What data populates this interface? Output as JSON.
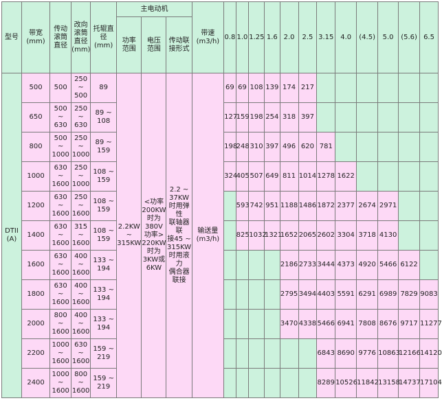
{
  "headers": {
    "model": "型号",
    "belt_width": "带宽\n(mm)",
    "drive_pulley": "传动\n滚筒\n直径",
    "bend_pulley": "改向\n滚筒\n直径\n(mm)",
    "idler": "托辊直\n径\n(mm)",
    "main_motor": "主电动机",
    "power_range": "功率\n范围",
    "voltage_range": "电压\n范围",
    "drive_connection": "传动联\n接形式",
    "belt_speed": "带速\n(m3/h)"
  },
  "speeds": [
    "0.8",
    "1.0",
    "1.25",
    "1.6",
    "2.0",
    "2.5",
    "3.15",
    "4.0",
    "(4.5)",
    "5.0",
    "(5.6)",
    "6.5"
  ],
  "model": "DTII\n(A)",
  "shared": {
    "power": "2.2KW\n~\n315KW",
    "voltage": "<功率\n200KW\n时为\n380V\n功率>\n220KW\n时为\n3KW或\n6KW",
    "connection": "2.2 ~\n37KW\n时用弹\n性\n联轴器\n联\n接45 ~\n315KW\n时用液\n力\n偶合器\n联接",
    "capacity_label": "输送量\n(m3/h)"
  },
  "rows": [
    {
      "width": "500",
      "drive": "500",
      "bend": "250\n~\n500",
      "idler": "89",
      "cap": [
        "69",
        "69",
        "108",
        "139",
        "174",
        "217",
        "",
        "",
        "",
        "",
        "",
        ""
      ]
    },
    {
      "width": "650",
      "drive": "500\n~\n630",
      "bend": "250\n~\n630",
      "idler": "89 ~\n108",
      "cap": [
        "127",
        "159",
        "198",
        "254",
        "318",
        "397",
        "",
        "",
        "",
        "",
        "",
        ""
      ]
    },
    {
      "width": "800",
      "drive": "500\n~\n1000",
      "bend": "250\n~\n1000",
      "idler": "89 ~\n159",
      "cap": [
        "198",
        "248",
        "310",
        "397",
        "496",
        "620",
        "781",
        "",
        "",
        "",
        "",
        ""
      ]
    },
    {
      "width": "1000",
      "drive": "630\n~\n1600",
      "bend": "250\n~\n1000",
      "idler": "108 ~\n159",
      "cap": [
        "324",
        "405",
        "507",
        "649",
        "811",
        "1014",
        "1278",
        "1622",
        "",
        "",
        "",
        ""
      ]
    },
    {
      "width": "1200",
      "drive": "630\n~\n1600",
      "bend": "250\n~\n1600",
      "idler": "108 ~\n159",
      "cap": [
        "",
        "593",
        "742",
        "951",
        "1188",
        "1486",
        "1872",
        "2377",
        "2674",
        "2971",
        "",
        ""
      ]
    },
    {
      "width": "1400",
      "drive": "630\n~\n1600",
      "bend": "315\n~\n1600",
      "idler": "108 ~\n159",
      "cap": [
        "",
        "825",
        "1032",
        "1321",
        "1652",
        "2065",
        "2602",
        "3304",
        "3718",
        "4130",
        "",
        ""
      ]
    },
    {
      "width": "1600",
      "drive": "630\n~\n1600",
      "bend": "400\n~\n1600",
      "idler": "133 ~\n194",
      "cap": [
        "",
        "",
        "",
        "",
        "2186",
        "2733",
        "3444",
        "4373",
        "4920",
        "5466",
        "6122",
        ""
      ]
    },
    {
      "width": "1800",
      "drive": "630\n~\n1600",
      "bend": "400\n~\n1600",
      "idler": "133 ~\n194",
      "cap": [
        "",
        "",
        "",
        "",
        "2795",
        "3494",
        "4403",
        "5591",
        "6291",
        "6989",
        "7829",
        "9083"
      ]
    },
    {
      "width": "2000",
      "drive": "800\n~\n1600",
      "bend": "400\n~\n1600",
      "idler": "133 ~\n194",
      "cap": [
        "",
        "",
        "",
        "",
        "3470",
        "4338",
        "5466",
        "6941",
        "7808",
        "8676",
        "9717",
        "11277"
      ]
    },
    {
      "width": "2200",
      "drive": "1000\n~\n1600",
      "bend": "630\n~\n1600",
      "idler": "159 ~\n219",
      "cap": [
        "",
        "",
        "",
        "",
        "",
        "",
        "6843",
        "8690",
        "9776",
        "10863",
        "12166",
        "14120"
      ]
    },
    {
      "width": "2400",
      "drive": "1000\n~\n1600",
      "bend": "800\n~\n1600",
      "idler": "159 ~\n219",
      "cap": [
        "",
        "",
        "",
        "",
        "",
        "",
        "8289",
        "10526",
        "11842",
        "13158",
        "14737",
        "17104"
      ]
    }
  ]
}
